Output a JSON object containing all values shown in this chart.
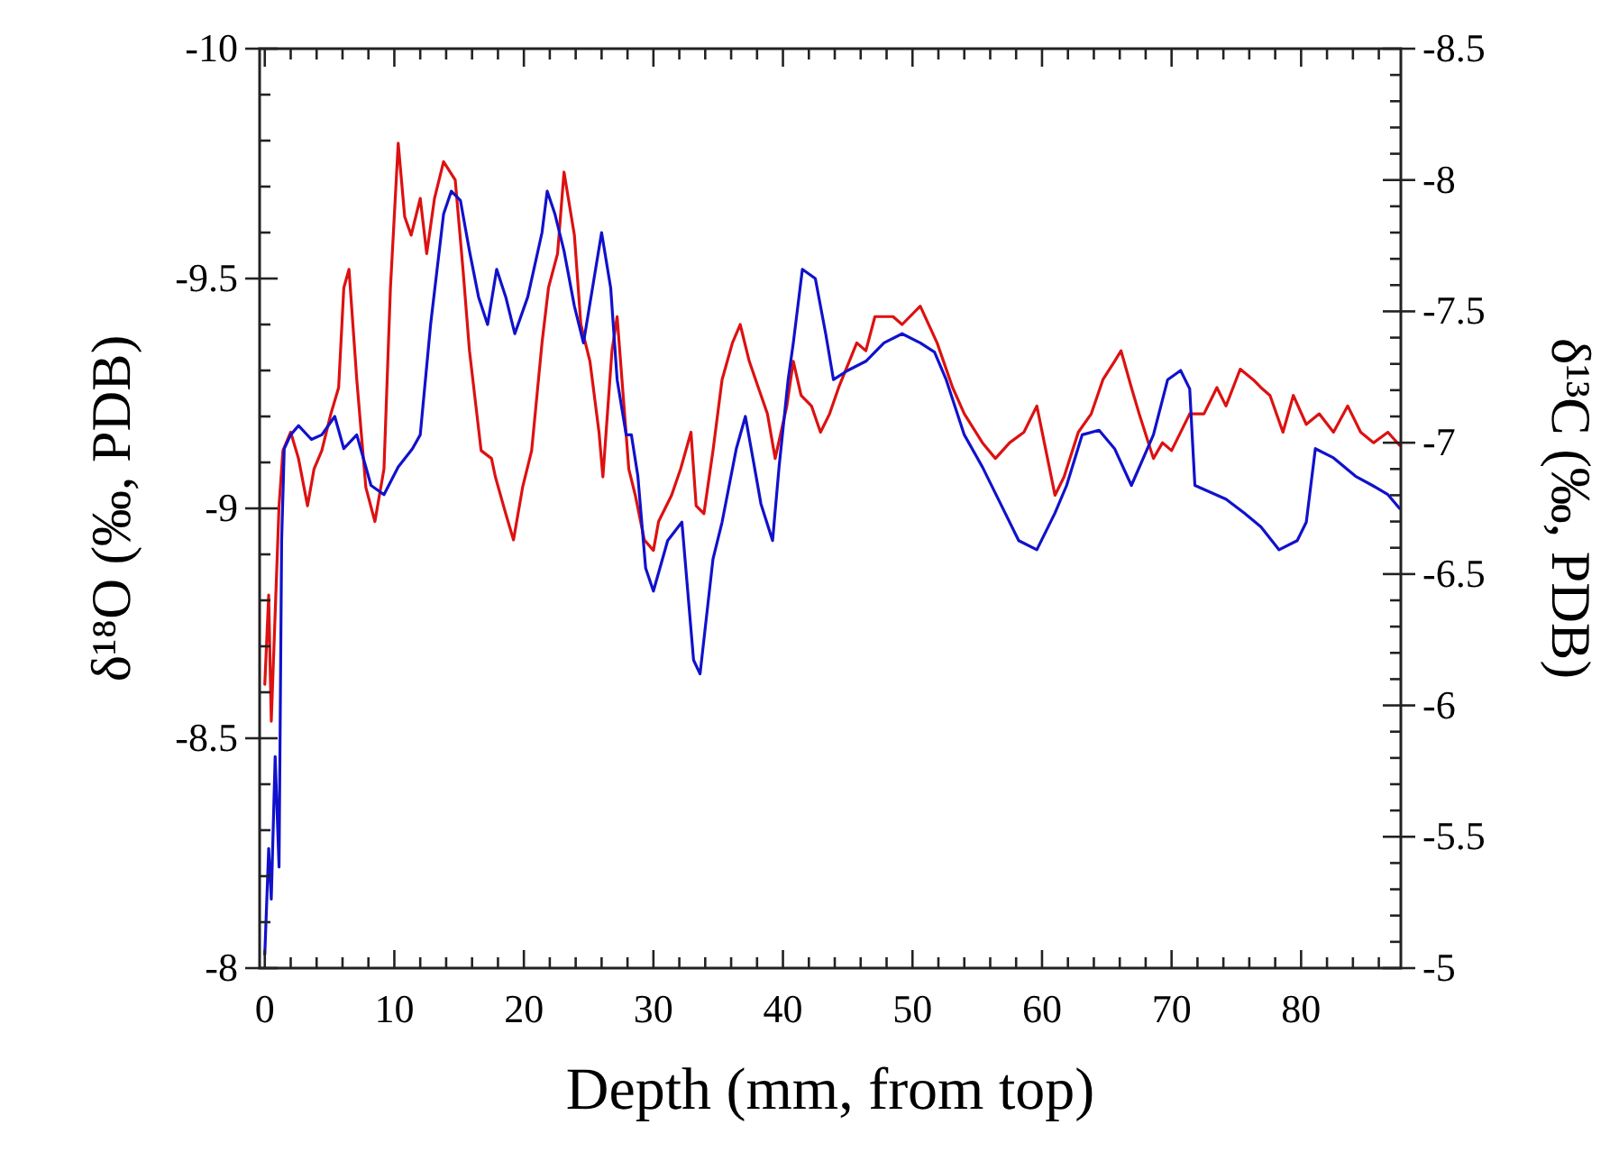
{
  "chart_data": {
    "type": "line",
    "xlabel": "Depth (mm, from top)",
    "ylabel": "δ¹⁸O (‰,  PDB)",
    "y2label": "δ¹³C (‰, PDB)",
    "xlim": [
      -0.4,
      87.7
    ],
    "ylim": [
      -8,
      -10
    ],
    "y2lim": [
      -5,
      -8.5
    ],
    "xticks": [
      0,
      {
        "value": 2,
        "label": null
      },
      {
        "value": 4,
        "label": null
      },
      {
        "value": 6,
        "label": null
      },
      {
        "value": 8,
        "label": null
      },
      10,
      {
        "value": 12,
        "label": null
      },
      {
        "value": 14,
        "label": null
      },
      {
        "value": 16,
        "label": null
      },
      {
        "value": 18,
        "label": null
      },
      20,
      {
        "value": 22,
        "label": null
      },
      {
        "value": 24,
        "label": null
      },
      {
        "value": 26,
        "label": null
      },
      {
        "value": 28,
        "label": null
      },
      30,
      {
        "value": 32,
        "label": null
      },
      {
        "value": 34,
        "label": null
      },
      {
        "value": 36,
        "label": null
      },
      {
        "value": 38,
        "label": null
      },
      40,
      {
        "value": 42,
        "label": null
      },
      {
        "value": 44,
        "label": null
      },
      {
        "value": 46,
        "label": null
      },
      {
        "value": 48,
        "label": null
      },
      50,
      {
        "value": 52,
        "label": null
      },
      {
        "value": 54,
        "label": null
      },
      {
        "value": 56,
        "label": null
      },
      {
        "value": 58,
        "label": null
      },
      60,
      {
        "value": 62,
        "label": null
      },
      {
        "value": 64,
        "label": null
      },
      {
        "value": 66,
        "label": null
      },
      {
        "value": 68,
        "label": null
      },
      70,
      {
        "value": 72,
        "label": null
      },
      {
        "value": 74,
        "label": null
      },
      {
        "value": 76,
        "label": null
      },
      {
        "value": 78,
        "label": null
      },
      80,
      {
        "value": 82,
        "label": null
      },
      {
        "value": 84,
        "label": null
      },
      {
        "value": 86,
        "label": null
      }
    ],
    "yticks": [
      -10,
      {
        "value": -9.9,
        "label": null
      },
      {
        "value": -9.8,
        "label": null
      },
      {
        "value": -9.7,
        "label": null
      },
      {
        "value": -9.6,
        "label": null
      },
      -9.5,
      {
        "value": -9.4,
        "label": null
      },
      {
        "value": -9.3,
        "label": null
      },
      {
        "value": -9.2,
        "label": null
      },
      {
        "value": -9.1,
        "label": null
      },
      -9,
      {
        "value": -8.9,
        "label": null
      },
      {
        "value": -8.8,
        "label": null
      },
      {
        "value": -8.7,
        "label": null
      },
      {
        "value": -8.6,
        "label": null
      },
      -8.5,
      {
        "value": -8.4,
        "label": null
      },
      {
        "value": -8.3,
        "label": null
      },
      {
        "value": -8.2,
        "label": null
      },
      {
        "value": -8.1,
        "label": null
      },
      -8
    ],
    "y2ticks": [
      -8.5,
      {
        "value": -8.4,
        "label": null
      },
      {
        "value": -8.3,
        "label": null
      },
      {
        "value": -8.2,
        "label": null
      },
      {
        "value": -8.1,
        "label": null
      },
      -8,
      {
        "value": -7.9,
        "label": null
      },
      {
        "value": -7.8,
        "label": null
      },
      {
        "value": -7.7,
        "label": null
      },
      {
        "value": -7.6,
        "label": null
      },
      -7.5,
      {
        "value": -7.4,
        "label": null
      },
      {
        "value": -7.3,
        "label": null
      },
      {
        "value": -7.2,
        "label": null
      },
      {
        "value": -7.1,
        "label": null
      },
      -7,
      {
        "value": -6.9,
        "label": null
      },
      {
        "value": -6.8,
        "label": null
      },
      {
        "value": -6.7,
        "label": null
      },
      {
        "value": -6.6,
        "label": null
      },
      -6.5,
      {
        "value": -6.4,
        "label": null
      },
      {
        "value": -6.3,
        "label": null
      },
      {
        "value": -6.2,
        "label": null
      },
      {
        "value": -6.1,
        "label": null
      },
      -6,
      {
        "value": -5.9,
        "label": null
      },
      {
        "value": -5.8,
        "label": null
      },
      {
        "value": -5.7,
        "label": null
      },
      {
        "value": -5.6,
        "label": null
      },
      -5.5,
      {
        "value": -5.4,
        "label": null
      },
      {
        "value": -5.3,
        "label": null
      },
      {
        "value": -5.2,
        "label": null
      },
      {
        "value": -5.1,
        "label": null
      },
      -5
    ],
    "series": [
      {
        "color": "#dd1111",
        "axis": "y2",
        "x": [
          0,
          0.3,
          0.5,
          1.1,
          1.4,
          2.0,
          2.6,
          3.3,
          3.8,
          4.4,
          5.1,
          5.7,
          6.1,
          6.5,
          7.1,
          7.8,
          8.5,
          9.2,
          9.7,
          10.3,
          10.8,
          11.3,
          12.0,
          12.5,
          13.1,
          13.8,
          14.7,
          15.3,
          15.8,
          16.7,
          17.5,
          17.8,
          18.6,
          19.2,
          19.9,
          20.6,
          21.4,
          21.9,
          22.6,
          23.1,
          23.9,
          24.4,
          25.1,
          25.8,
          26.1,
          26.8,
          27.2,
          28.1,
          28.6,
          29.3,
          30.0,
          30.4,
          31.4,
          32.1,
          32.9,
          33.3,
          33.9,
          34.6,
          35.3,
          36.1,
          36.7,
          37.4,
          38.1,
          38.8,
          39.4,
          40.3,
          40.8,
          41.4,
          42.2,
          42.9,
          43.6,
          44.3,
          45.7,
          46.4,
          47.1,
          48.5,
          49.2,
          50.6,
          51.9,
          53.1,
          54.0,
          55.4,
          56.4,
          57.5,
          58.6,
          59.6,
          60.3,
          61.0,
          61.7,
          62.8,
          63.8,
          64.7,
          65.6,
          66.1,
          66.9,
          67.5,
          68.6,
          69.3,
          70.0,
          71.4,
          72.5,
          73.5,
          74.2,
          75.3,
          76.3,
          76.9,
          77.6,
          78.6,
          79.4,
          80.4,
          81.4,
          82.5,
          83.6,
          84.6,
          85.6,
          86.7,
          87.6
        ],
        "values": [
          -6.08,
          -6.42,
          -5.94,
          -6.76,
          -6.97,
          -7.04,
          -6.94,
          -6.76,
          -6.9,
          -6.97,
          -7.11,
          -7.21,
          -7.59,
          -7.66,
          -7.24,
          -6.83,
          -6.7,
          -6.9,
          -7.59,
          -8.14,
          -7.86,
          -7.79,
          -7.93,
          -7.72,
          -7.93,
          -8.07,
          -8.0,
          -7.66,
          -7.35,
          -6.97,
          -6.94,
          -6.87,
          -6.73,
          -6.63,
          -6.83,
          -6.97,
          -7.38,
          -7.59,
          -7.72,
          -8.03,
          -7.79,
          -7.45,
          -7.31,
          -7.04,
          -6.87,
          -7.35,
          -7.48,
          -6.9,
          -6.8,
          -6.63,
          -6.59,
          -6.7,
          -6.8,
          -6.9,
          -7.04,
          -6.76,
          -6.73,
          -6.97,
          -7.24,
          -7.38,
          -7.45,
          -7.31,
          -7.21,
          -7.11,
          -6.94,
          -7.14,
          -7.31,
          -7.18,
          -7.14,
          -7.04,
          -7.11,
          -7.21,
          -7.38,
          -7.35,
          -7.48,
          -7.48,
          -7.45,
          -7.52,
          -7.38,
          -7.21,
          -7.11,
          -7.0,
          -6.94,
          -7.0,
          -7.04,
          -7.14,
          -6.97,
          -6.8,
          -6.87,
          -7.04,
          -7.11,
          -7.24,
          -7.31,
          -7.35,
          -7.21,
          -7.11,
          -6.94,
          -7.0,
          -6.97,
          -7.11,
          -7.11,
          -7.21,
          -7.14,
          -7.28,
          -7.24,
          -7.21,
          -7.18,
          -7.04,
          -7.18,
          -7.07,
          -7.11,
          -7.04,
          -7.14,
          -7.04,
          -7.0,
          -7.04,
          -6.99
        ]
      },
      {
        "color": "#1111cc",
        "axis": "y",
        "x": [
          0,
          0.3,
          0.5,
          0.8,
          1.1,
          1.3,
          1.5,
          2.0,
          2.6,
          3.6,
          4.4,
          5.4,
          6.1,
          7.1,
          8.2,
          9.2,
          10.3,
          11.4,
          12.0,
          12.8,
          13.8,
          14.4,
          15.1,
          15.8,
          16.5,
          17.2,
          17.9,
          18.6,
          19.3,
          20.3,
          21.4,
          21.8,
          22.4,
          23.1,
          23.9,
          24.6,
          25.3,
          26.0,
          26.7,
          27.2,
          27.9,
          28.3,
          28.8,
          29.4,
          30.0,
          31.1,
          32.2,
          33.1,
          33.6,
          34.6,
          35.3,
          36.4,
          37.1,
          37.8,
          38.3,
          39.2,
          39.7,
          40.4,
          40.8,
          41.5,
          42.5,
          43.3,
          43.9,
          45.0,
          46.4,
          47.8,
          49.2,
          50.6,
          51.7,
          52.6,
          54.0,
          55.4,
          56.8,
          58.2,
          59.6,
          61.0,
          61.9,
          63.1,
          64.4,
          65.6,
          66.9,
          68.6,
          69.7,
          70.7,
          71.4,
          71.8,
          74.2,
          75.6,
          76.9,
          78.3,
          79.7,
          80.4,
          81.1,
          82.5,
          84.2,
          85.5,
          86.7,
          87.6
        ],
        "values": [
          -8.03,
          -8.26,
          -8.15,
          -8.46,
          -8.22,
          -8.93,
          -9.13,
          -9.16,
          -9.18,
          -9.15,
          -9.16,
          -9.2,
          -9.13,
          -9.16,
          -9.05,
          -9.03,
          -9.09,
          -9.13,
          -9.16,
          -9.4,
          -9.64,
          -9.69,
          -9.67,
          -9.56,
          -9.46,
          -9.4,
          -9.52,
          -9.46,
          -9.38,
          -9.46,
          -9.6,
          -9.69,
          -9.64,
          -9.56,
          -9.44,
          -9.36,
          -9.48,
          -9.6,
          -9.48,
          -9.28,
          -9.16,
          -9.16,
          -9.07,
          -8.87,
          -8.82,
          -8.93,
          -8.97,
          -8.67,
          -8.64,
          -8.89,
          -8.97,
          -9.13,
          -9.2,
          -9.09,
          -9.01,
          -8.93,
          -9.09,
          -9.28,
          -9.36,
          -9.52,
          -9.5,
          -9.38,
          -9.28,
          -9.3,
          -9.32,
          -9.36,
          -9.38,
          -9.36,
          -9.34,
          -9.28,
          -9.16,
          -9.09,
          -9.01,
          -8.93,
          -8.91,
          -8.99,
          -9.05,
          -9.16,
          -9.17,
          -9.13,
          -9.05,
          -9.16,
          -9.28,
          -9.3,
          -9.26,
          -9.05,
          -9.02,
          -8.99,
          -8.96,
          -8.91,
          -8.93,
          -8.97,
          -9.13,
          -9.11,
          -9.07,
          -9.05,
          -9.03,
          -9.0
        ]
      }
    ]
  }
}
